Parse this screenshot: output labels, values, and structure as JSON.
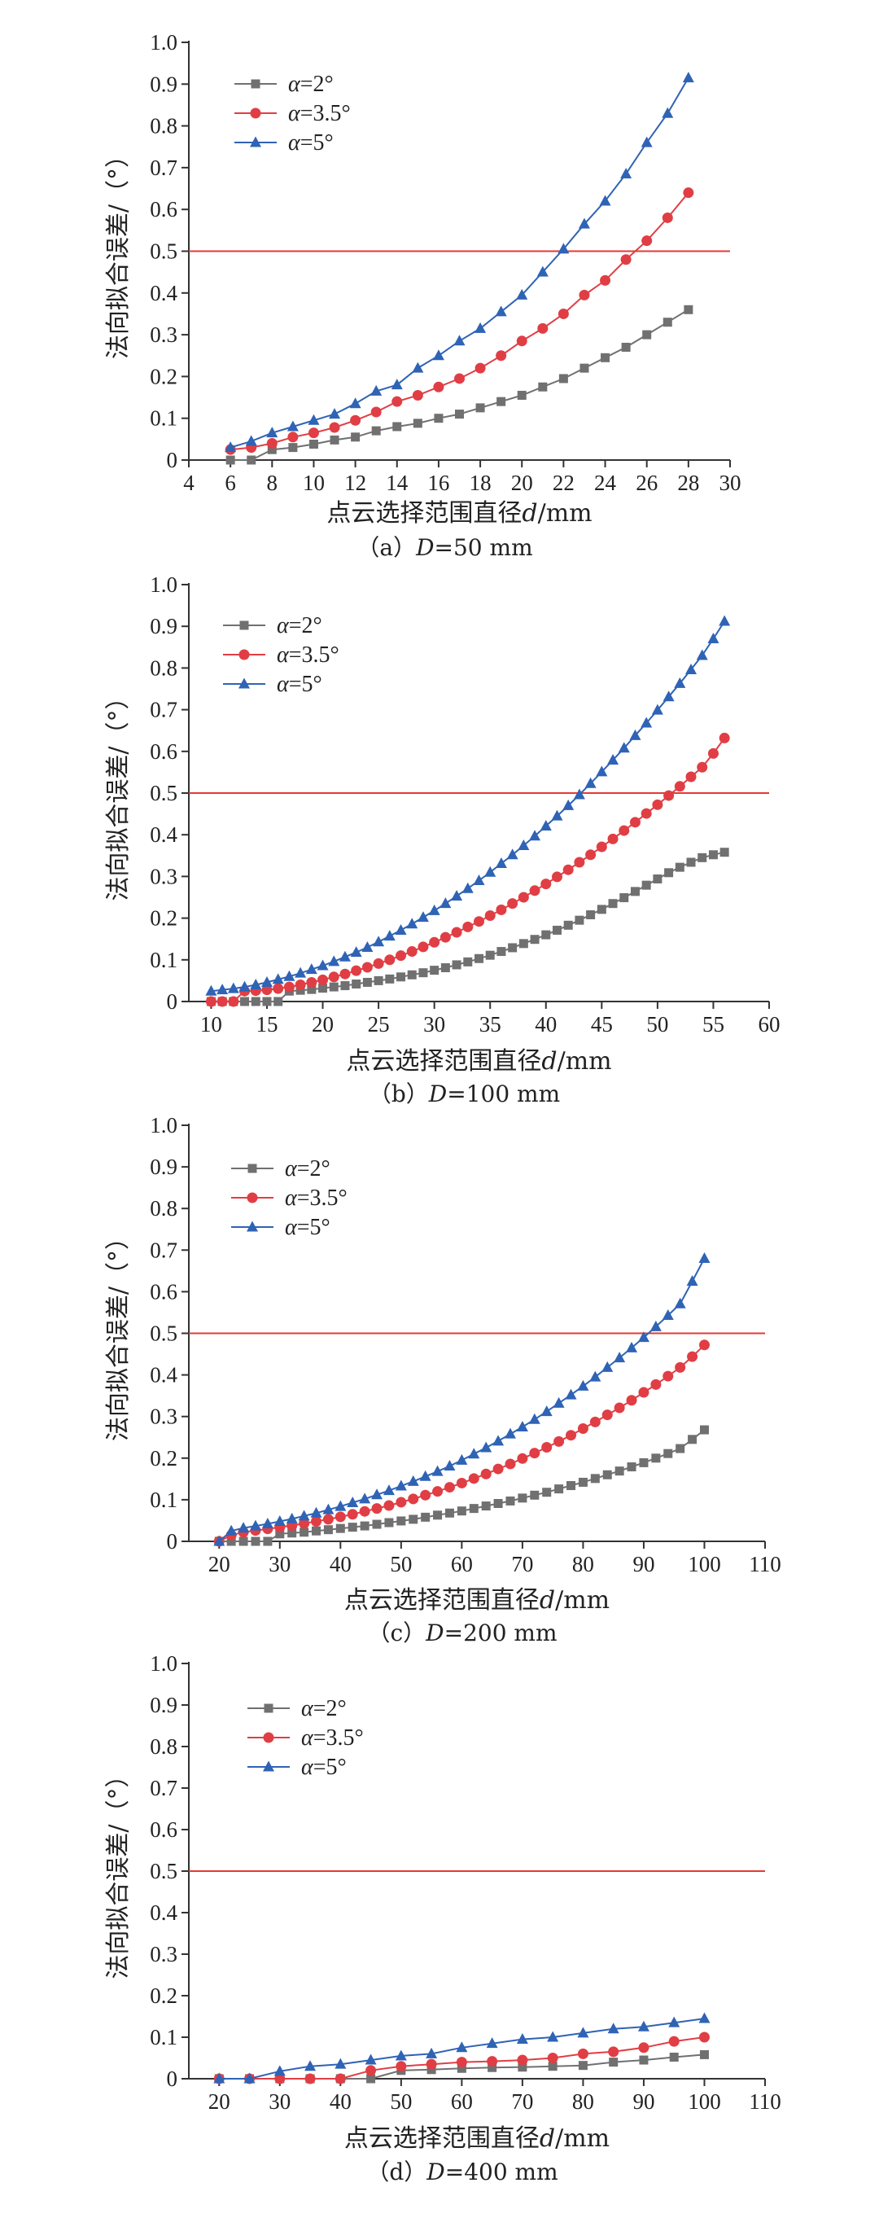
{
  "colors": {
    "s2": "#707070",
    "s35": "#e03e44",
    "s5": "#2f63b5",
    "threshold": "#e53935"
  },
  "icons": {
    "s2": "square-marker",
    "s35": "circle-marker",
    "s5": "triangle-marker"
  },
  "yticks": [
    "0",
    "0.1",
    "0.2",
    "0.3",
    "0.4",
    "0.5",
    "0.6",
    "0.7",
    "0.8",
    "0.9",
    "1.0"
  ],
  "chart_data": [
    {
      "type": "line",
      "ylabel": "法向拟合误差/（°）",
      "xlabel": {
        "pre": "点云选择范围直径",
        "var": "d",
        "post": "/mm"
      },
      "caption": {
        "pre": "（a）",
        "var": "D",
        "post": "=50 mm"
      },
      "xlim": [
        4,
        30
      ],
      "ylim": [
        0,
        1.0
      ],
      "xticks": [
        4,
        6,
        8,
        10,
        12,
        14,
        16,
        18,
        20,
        22,
        24,
        26,
        28,
        30
      ],
      "threshold": 0.5,
      "legend_position": "top-left",
      "legend": [
        {
          "pre": "α",
          "post": "=2°"
        },
        {
          "pre": "α",
          "post": "=3.5°"
        },
        {
          "pre": "α",
          "post": "=5°"
        }
      ],
      "x": [
        6,
        7,
        8,
        9,
        10,
        11,
        12,
        13,
        14,
        15,
        16,
        17,
        18,
        19,
        20,
        21,
        22,
        23,
        24,
        25,
        26,
        27,
        28
      ],
      "series": [
        {
          "name": "α=2°",
          "values": [
            0.0,
            0.0,
            0.025,
            0.03,
            0.038,
            0.048,
            0.055,
            0.07,
            0.08,
            0.088,
            0.1,
            0.11,
            0.125,
            0.14,
            0.155,
            0.175,
            0.195,
            0.22,
            0.245,
            0.27,
            0.3,
            0.33,
            0.36
          ]
        },
        {
          "name": "α=3.5°",
          "values": [
            0.025,
            0.03,
            0.04,
            0.055,
            0.065,
            0.078,
            0.095,
            0.115,
            0.14,
            0.155,
            0.175,
            0.195,
            0.22,
            0.25,
            0.285,
            0.315,
            0.35,
            0.395,
            0.43,
            0.48,
            0.525,
            0.58,
            0.64
          ]
        },
        {
          "name": "α=5°",
          "values": [
            0.03,
            0.045,
            0.065,
            0.08,
            0.095,
            0.11,
            0.135,
            0.165,
            0.18,
            0.22,
            0.25,
            0.285,
            0.315,
            0.355,
            0.395,
            0.45,
            0.505,
            0.565,
            0.62,
            0.685,
            0.76,
            0.83,
            0.915
          ]
        }
      ]
    },
    {
      "type": "line",
      "ylabel": "法向拟合误差/（°）",
      "xlabel": {
        "pre": "点云选择范围直径",
        "var": "d",
        "post": "/mm"
      },
      "caption": {
        "pre": "（b）",
        "var": "D",
        "post": "=100 mm"
      },
      "xlim": [
        8,
        60
      ],
      "ylim": [
        0,
        1.0
      ],
      "xticks": [
        10,
        15,
        20,
        25,
        30,
        35,
        40,
        45,
        50,
        55,
        60
      ],
      "threshold": 0.5,
      "legend_position": "top-left",
      "legend": [
        {
          "pre": "α",
          "post": "=2°"
        },
        {
          "pre": "α",
          "post": "=3.5°"
        },
        {
          "pre": "α",
          "post": "=5°"
        }
      ],
      "x": [
        10,
        11,
        12,
        13,
        14,
        15,
        16,
        17,
        18,
        19,
        20,
        21,
        22,
        23,
        24,
        25,
        26,
        27,
        28,
        29,
        30,
        31,
        32,
        33,
        34,
        35,
        36,
        37,
        38,
        39,
        40,
        41,
        42,
        43,
        44,
        45,
        46,
        47,
        48,
        49,
        50,
        51,
        52,
        53,
        54,
        55,
        56
      ],
      "series": [
        {
          "name": "α=2°",
          "values": [
            0.0,
            0.0,
            0.0,
            0.0,
            0.0,
            0.0,
            0.0,
            0.025,
            0.027,
            0.029,
            0.032,
            0.035,
            0.038,
            0.042,
            0.046,
            0.05,
            0.054,
            0.059,
            0.064,
            0.069,
            0.075,
            0.081,
            0.088,
            0.095,
            0.103,
            0.111,
            0.12,
            0.129,
            0.139,
            0.149,
            0.16,
            0.171,
            0.183,
            0.195,
            0.208,
            0.221,
            0.235,
            0.249,
            0.264,
            0.279,
            0.294,
            0.309,
            0.322,
            0.334,
            0.345,
            0.352,
            0.358
          ]
        },
        {
          "name": "α=3.5°",
          "values": [
            0.0,
            0.0,
            0.0,
            0.025,
            0.026,
            0.028,
            0.031,
            0.035,
            0.04,
            0.046,
            0.052,
            0.059,
            0.066,
            0.074,
            0.082,
            0.091,
            0.1,
            0.11,
            0.12,
            0.131,
            0.142,
            0.154,
            0.166,
            0.179,
            0.192,
            0.206,
            0.22,
            0.235,
            0.25,
            0.266,
            0.282,
            0.299,
            0.316,
            0.334,
            0.352,
            0.371,
            0.39,
            0.41,
            0.43,
            0.451,
            0.472,
            0.494,
            0.516,
            0.539,
            0.562,
            0.595,
            0.632
          ]
        },
        {
          "name": "α=5°",
          "values": [
            0.025,
            0.028,
            0.031,
            0.035,
            0.04,
            0.046,
            0.053,
            0.06,
            0.068,
            0.077,
            0.086,
            0.096,
            0.107,
            0.118,
            0.13,
            0.143,
            0.157,
            0.171,
            0.186,
            0.202,
            0.218,
            0.235,
            0.253,
            0.271,
            0.29,
            0.31,
            0.331,
            0.352,
            0.374,
            0.397,
            0.421,
            0.445,
            0.47,
            0.496,
            0.523,
            0.551,
            0.579,
            0.608,
            0.638,
            0.668,
            0.699,
            0.731,
            0.763,
            0.796,
            0.83,
            0.87,
            0.912
          ]
        }
      ]
    },
    {
      "type": "line",
      "ylabel": "法向拟合误差/（°）",
      "xlabel": {
        "pre": "点云选择范围直径",
        "var": "d",
        "post": "/mm"
      },
      "caption": {
        "pre": "（c）",
        "var": "D",
        "post": "=200 mm"
      },
      "xlim": [
        15,
        110
      ],
      "ylim": [
        0,
        1.0
      ],
      "xticks": [
        20,
        30,
        40,
        50,
        60,
        70,
        80,
        90,
        100,
        110
      ],
      "threshold": 0.5,
      "legend_position": "top-left",
      "legend": [
        {
          "pre": "α",
          "post": "=2°"
        },
        {
          "pre": "α",
          "post": "=3.5°"
        },
        {
          "pre": "α",
          "post": "=5°"
        }
      ],
      "x": [
        20,
        22,
        24,
        26,
        28,
        30,
        32,
        34,
        36,
        38,
        40,
        42,
        44,
        46,
        48,
        50,
        52,
        54,
        56,
        58,
        60,
        62,
        64,
        66,
        68,
        70,
        72,
        74,
        76,
        78,
        80,
        82,
        84,
        86,
        88,
        90,
        92,
        94,
        96,
        98,
        100
      ],
      "series": [
        {
          "name": "α=2°",
          "values": [
            0.0,
            0.0,
            0.0,
            0.0,
            0.0,
            0.018,
            0.02,
            0.022,
            0.025,
            0.028,
            0.031,
            0.034,
            0.037,
            0.041,
            0.045,
            0.049,
            0.053,
            0.058,
            0.063,
            0.068,
            0.073,
            0.079,
            0.085,
            0.091,
            0.097,
            0.104,
            0.111,
            0.118,
            0.126,
            0.134,
            0.142,
            0.151,
            0.16,
            0.169,
            0.179,
            0.189,
            0.2,
            0.211,
            0.223,
            0.245,
            0.268
          ]
        },
        {
          "name": "α=3.5°",
          "values": [
            0.0,
            0.015,
            0.022,
            0.026,
            0.03,
            0.034,
            0.038,
            0.043,
            0.048,
            0.053,
            0.059,
            0.065,
            0.072,
            0.079,
            0.086,
            0.094,
            0.102,
            0.111,
            0.12,
            0.13,
            0.14,
            0.151,
            0.162,
            0.174,
            0.186,
            0.199,
            0.212,
            0.226,
            0.24,
            0.255,
            0.271,
            0.287,
            0.304,
            0.321,
            0.339,
            0.358,
            0.377,
            0.397,
            0.418,
            0.444,
            0.472
          ]
        },
        {
          "name": "α=5°",
          "values": [
            0.0,
            0.025,
            0.032,
            0.037,
            0.042,
            0.048,
            0.054,
            0.061,
            0.068,
            0.076,
            0.084,
            0.093,
            0.102,
            0.112,
            0.122,
            0.133,
            0.144,
            0.156,
            0.168,
            0.181,
            0.195,
            0.21,
            0.225,
            0.241,
            0.258,
            0.275,
            0.293,
            0.312,
            0.332,
            0.352,
            0.373,
            0.395,
            0.418,
            0.441,
            0.465,
            0.49,
            0.516,
            0.543,
            0.571,
            0.625,
            0.68
          ]
        }
      ]
    },
    {
      "type": "line",
      "ylabel": "法向拟合误差/（°）",
      "xlabel": {
        "pre": "点云选择范围直径",
        "var": "d",
        "post": "/mm"
      },
      "caption": {
        "pre": "（d）",
        "var": "D",
        "post": "=400 mm"
      },
      "xlim": [
        15,
        110
      ],
      "ylim": [
        0,
        1.0
      ],
      "xticks": [
        20,
        30,
        40,
        50,
        60,
        70,
        80,
        90,
        100,
        110
      ],
      "threshold": 0.5,
      "legend_position": "top-left",
      "legend": [
        {
          "pre": "α",
          "post": "=2°"
        },
        {
          "pre": "α",
          "post": "=3.5°"
        },
        {
          "pre": "α",
          "post": "=5°"
        }
      ],
      "x": [
        20,
        25,
        30,
        35,
        40,
        45,
        50,
        55,
        60,
        65,
        70,
        75,
        80,
        85,
        90,
        95,
        100
      ],
      "series": [
        {
          "name": "α=2°",
          "values": [
            0.0,
            0.0,
            0.0,
            0.0,
            0.0,
            0.0,
            0.02,
            0.022,
            0.025,
            0.027,
            0.028,
            0.03,
            0.032,
            0.04,
            0.045,
            0.052,
            0.058
          ]
        },
        {
          "name": "α=3.5°",
          "values": [
            0.0,
            0.0,
            0.0,
            0.0,
            0.0,
            0.02,
            0.03,
            0.035,
            0.04,
            0.042,
            0.045,
            0.05,
            0.06,
            0.065,
            0.075,
            0.09,
            0.1
          ]
        },
        {
          "name": "α=5°",
          "values": [
            0.0,
            0.0,
            0.018,
            0.03,
            0.035,
            0.045,
            0.055,
            0.06,
            0.075,
            0.085,
            0.095,
            0.1,
            0.11,
            0.12,
            0.125,
            0.135,
            0.145
          ]
        }
      ]
    }
  ]
}
